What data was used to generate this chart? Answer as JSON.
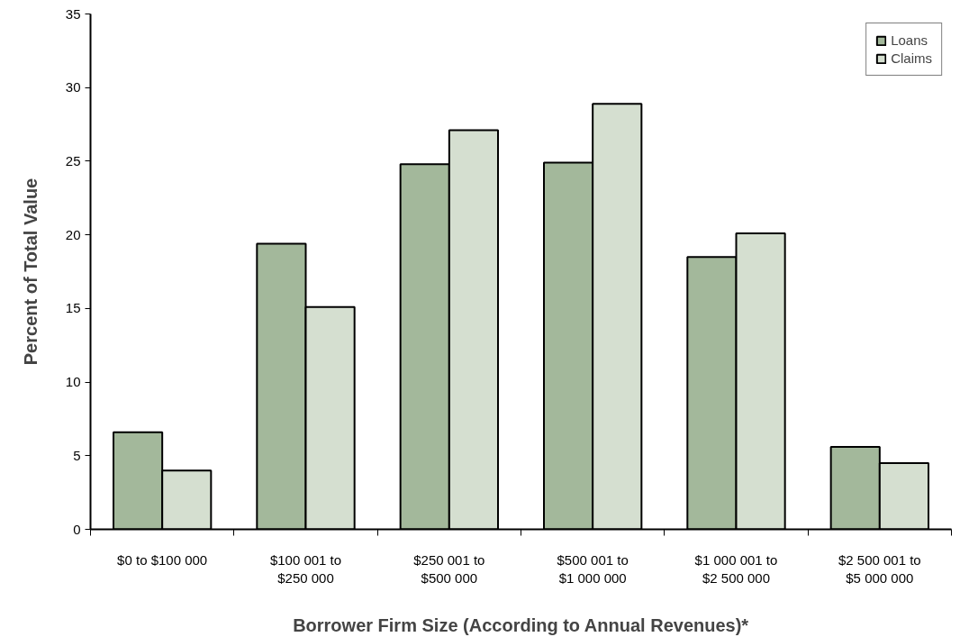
{
  "chart_data": {
    "type": "bar",
    "xlabel": "Borrower Firm Size (According to Annual Revenues)*",
    "ylabel": "Percent of Total Value",
    "categories": [
      "$0 to $100 000",
      "$100 001 to\n$250 000",
      "$250 001 to\n$500 000",
      "$500 001 to\n$1 000 000",
      "$1 000 001 to\n$2 500 000",
      "$2 500 001 to\n$5 000 000"
    ],
    "series": [
      {
        "name": "Loans",
        "color": "#a3b89b",
        "values": [
          6.6,
          19.4,
          24.8,
          24.9,
          18.5,
          5.6
        ]
      },
      {
        "name": "Claims",
        "color": "#d5dfd0",
        "values": [
          4.0,
          15.1,
          27.1,
          28.9,
          20.1,
          4.5
        ]
      }
    ],
    "ylim": [
      0,
      35
    ],
    "yticks": [
      0,
      5,
      10,
      15,
      20,
      25,
      30,
      35
    ],
    "grid": false,
    "legend": "top right"
  }
}
